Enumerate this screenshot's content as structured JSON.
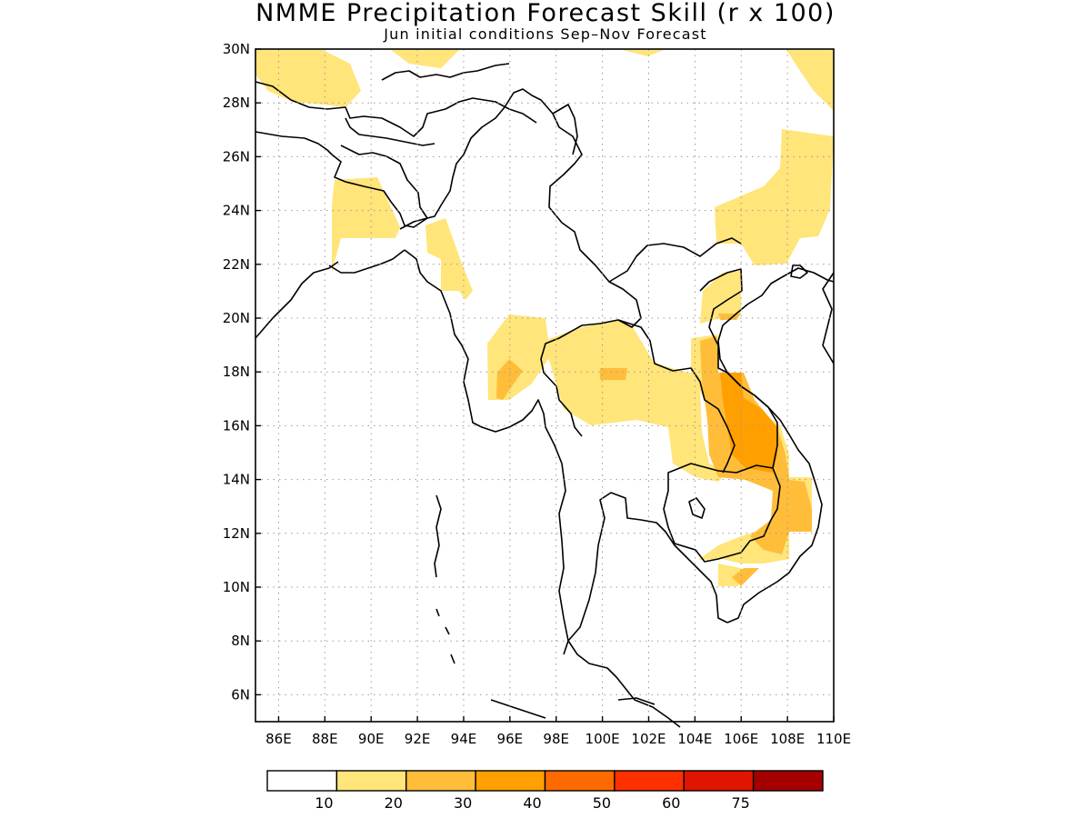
{
  "title": "NMME Precipitation Forecast Skill (r x 100)",
  "subtitle": "Jun initial conditions  Sep–Nov Forecast",
  "map": {
    "lon_range": [
      85,
      110
    ],
    "lat_range": [
      5,
      30
    ],
    "lat_ticks": [
      "30N",
      "28N",
      "26N",
      "24N",
      "22N",
      "20N",
      "18N",
      "16N",
      "14N",
      "12N",
      "10N",
      "8N",
      "6N"
    ],
    "lon_ticks": [
      "86E",
      "88E",
      "90E",
      "92E",
      "94E",
      "96E",
      "98E",
      "100E",
      "102E",
      "104E",
      "106E",
      "108E",
      "110E"
    ],
    "grid": "dotted"
  },
  "colorbar": {
    "colors": [
      "#ffffff",
      "#ffe57a",
      "#ffbd3a",
      "#ffa000",
      "#ff6a00",
      "#ff3000",
      "#e01500",
      "#a50000"
    ],
    "labels": [
      "10",
      "20",
      "30",
      "40",
      "50",
      "60",
      "75"
    ]
  }
}
